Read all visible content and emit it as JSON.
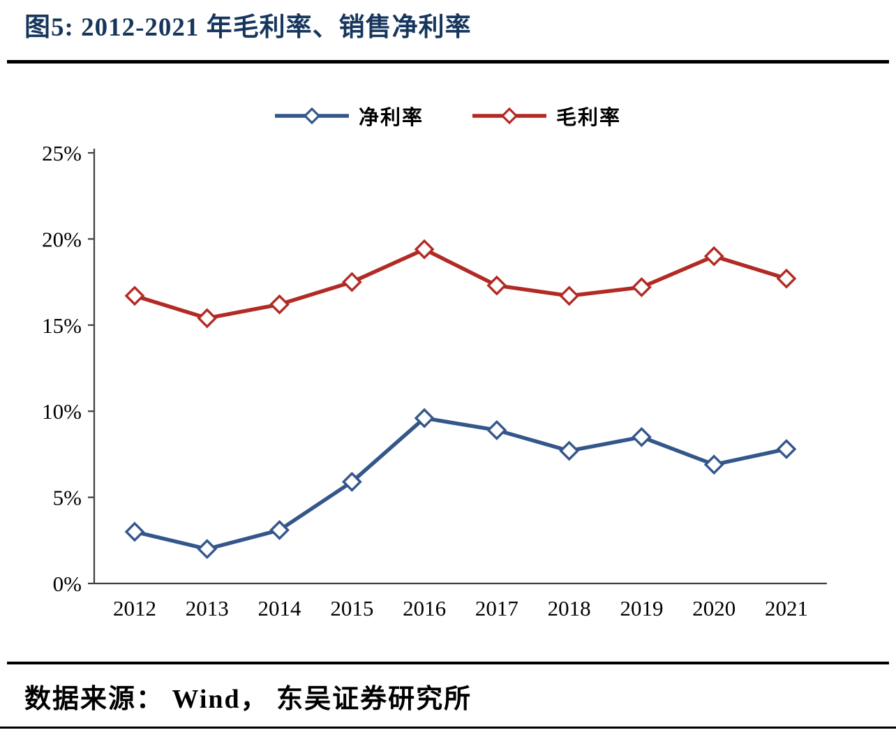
{
  "figure": {
    "title": "图5:  2012-2021 年毛利率、销售净利率",
    "source": "数据来源： Wind， 东吴证券研究所"
  },
  "colors": {
    "title": "#17365D",
    "net_margin": "#34568B",
    "gross_margin": "#B22A24",
    "axis": "#404040",
    "tick_text": "#000000",
    "rule": "#000000"
  },
  "chart_data": {
    "type": "line",
    "title": "图5: 2012-2021 年毛利率、销售净利率",
    "categories": [
      "2012",
      "2013",
      "2014",
      "2015",
      "2016",
      "2017",
      "2018",
      "2019",
      "2020",
      "2021"
    ],
    "series": [
      {
        "name": "净利率",
        "color_key": "net_margin",
        "values": [
          3.0,
          2.0,
          3.1,
          5.9,
          9.6,
          8.9,
          7.7,
          8.5,
          6.9,
          7.8
        ]
      },
      {
        "name": "毛利率",
        "color_key": "gross_margin",
        "values": [
          16.7,
          15.4,
          16.2,
          17.5,
          19.4,
          17.3,
          16.7,
          17.2,
          19.0,
          17.7
        ]
      }
    ],
    "xlabel": "",
    "ylabel": "",
    "ylim": [
      0,
      25
    ],
    "yticks": [
      0,
      5,
      10,
      15,
      20,
      25
    ],
    "ytick_format": "{v}%",
    "grid": false,
    "marker": "diamond-open",
    "legend_position": "top-center"
  }
}
